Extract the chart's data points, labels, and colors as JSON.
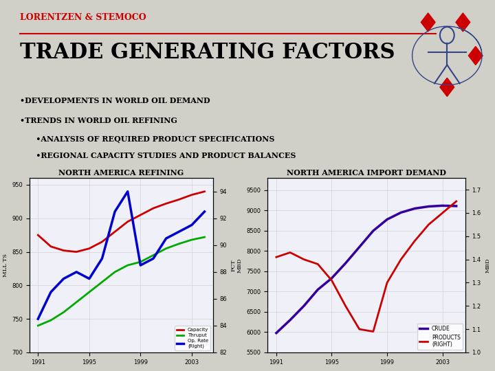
{
  "bg_color": "#d0cfc8",
  "title": "TRADE GENERATING FACTORS",
  "header": "LORENTZEN & STEMOCO",
  "bullets": [
    "•DEVELOPMENTS IN WORLD OIL DEMAND",
    "•TRENDS IN WORLD OIL REFINING",
    "      •ANALYSIS OF REQUIRED PRODUCT SPECIFICATIONS",
    "      •REGIONAL CAPACITY STUDIES AND PRODUCT BALANCES"
  ],
  "chart1": {
    "title": "NORTH AMERICA REFINING",
    "ylabel_left": "MLL TS",
    "ylabel_right": "PCT",
    "ylim_left": [
      700,
      960
    ],
    "ylim_right": [
      82,
      95
    ],
    "yticks_left": [
      700,
      750,
      800,
      850,
      900,
      950
    ],
    "yticks_right": [
      82,
      84,
      86,
      88,
      90,
      92,
      94
    ],
    "xticks": [
      1991,
      1995,
      1999,
      2003
    ],
    "capacity_x": [
      1991,
      1992,
      1993,
      1994,
      1995,
      1996,
      1997,
      1998,
      1999,
      2000,
      2001,
      2002,
      2003,
      2004
    ],
    "capacity_y": [
      875,
      858,
      852,
      850,
      855,
      865,
      880,
      895,
      905,
      915,
      922,
      928,
      935,
      940
    ],
    "thruput_x": [
      1991,
      1992,
      1993,
      1994,
      1995,
      1996,
      1997,
      1998,
      1999,
      2000,
      2001,
      2002,
      2003,
      2004
    ],
    "thruput_y": [
      740,
      748,
      760,
      775,
      790,
      805,
      820,
      830,
      835,
      845,
      855,
      862,
      868,
      872
    ],
    "oprate_x": [
      1991,
      1992,
      1993,
      1994,
      1995,
      1996,
      1997,
      1998,
      1999,
      2000,
      2001,
      2002,
      2003,
      2004
    ],
    "oprate_y": [
      84.5,
      86.5,
      87.5,
      88.0,
      87.5,
      89.0,
      92.5,
      94.0,
      88.5,
      89.0,
      90.5,
      91.0,
      91.5,
      92.5
    ],
    "capacity_color": "#cc0000",
    "thruput_color": "#00aa00",
    "oprate_color": "#0000cc"
  },
  "chart2": {
    "title": "NORTH AMERICA IMPORT DEMAND",
    "ylabel_left": "MBD",
    "ylabel_right": "MBD",
    "ylim_left": [
      5500,
      9800
    ],
    "ylim_right": [
      1.0,
      1.75
    ],
    "yticks_left": [
      5500,
      6000,
      6500,
      7000,
      7500,
      8000,
      8500,
      9000,
      9500
    ],
    "yticks_right": [
      1.0,
      1.1,
      1.2,
      1.3,
      1.4,
      1.5,
      1.6,
      1.7
    ],
    "xticks": [
      1991,
      1995,
      1999,
      2003
    ],
    "crude_x": [
      1991,
      1992,
      1993,
      1994,
      1995,
      1996,
      1997,
      1998,
      1999,
      2000,
      2001,
      2002,
      2003,
      2004
    ],
    "crude_y": [
      5980,
      6300,
      6650,
      7050,
      7330,
      7700,
      8100,
      8500,
      8780,
      8950,
      9050,
      9100,
      9120,
      9110
    ],
    "products_x": [
      1991,
      1992,
      1993,
      1994,
      1995,
      1996,
      1997,
      1998,
      1999,
      2000,
      2001,
      2002,
      2003,
      2004
    ],
    "products_y": [
      1.41,
      1.43,
      1.4,
      1.38,
      1.31,
      1.2,
      1.1,
      1.09,
      1.3,
      1.4,
      1.48,
      1.55,
      1.6,
      1.65
    ],
    "crude_color": "#330099",
    "products_color": "#cc0000"
  }
}
